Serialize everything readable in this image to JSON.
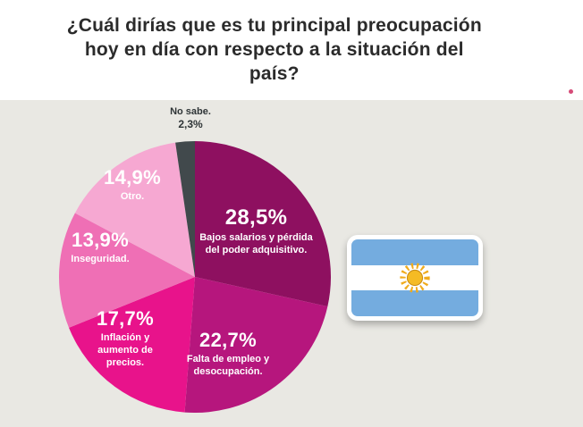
{
  "page": {
    "background_color": "#e9e8e3",
    "header_background_color": "#ffffff"
  },
  "header": {
    "title": "¿Cuál dirías que es tu principal preocupación hoy en día con respecto a la situación del país?"
  },
  "chart_data": {
    "type": "pie",
    "title": "¿Cuál dirías que es tu principal preocupación hoy en día con respecto a la situación del país?",
    "unit": "%",
    "start_angle_deg": 0,
    "direction": "clockwise",
    "grid": false,
    "legend": "labels-inside-slices",
    "slices": [
      {
        "label": "Bajos salarios y pérdida del poder adquisitivo.",
        "value": 28.5,
        "display": "28,5%",
        "color": "#8e1060"
      },
      {
        "label": "Falta de empleo y desocupación.",
        "value": 22.7,
        "display": "22,7%",
        "color": "#b6167d"
      },
      {
        "label": "Inflación y aumento de precios.",
        "value": 17.7,
        "display": "17,7%",
        "color": "#e8138b"
      },
      {
        "label": "Inseguridad.",
        "value": 13.9,
        "display": "13,9%",
        "color": "#ef6fb5"
      },
      {
        "label": "Otro.",
        "value": 14.9,
        "display": "14,9%",
        "color": "#f6a8d2"
      },
      {
        "label": "No sabe.",
        "value": 2.3,
        "display": "2,3%",
        "color": "#41494c"
      }
    ]
  },
  "flag": {
    "country": "Argentina",
    "stripe_color": "#74acdf",
    "middle_color": "#ffffff",
    "sun_color": "#f0ab1c"
  }
}
